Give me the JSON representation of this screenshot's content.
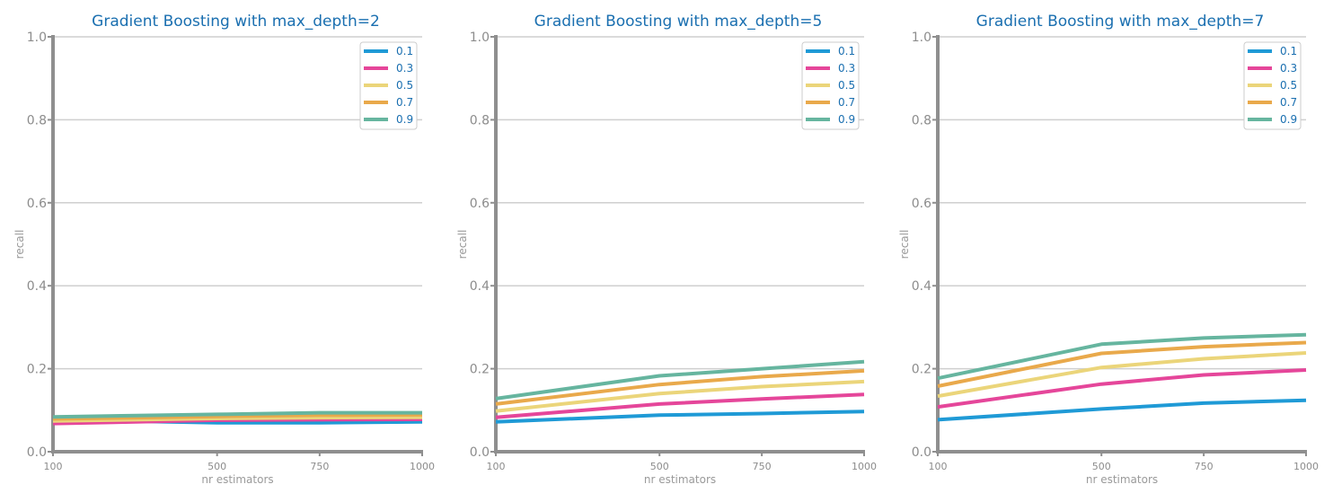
{
  "chart_data": [
    {
      "type": "line",
      "title": "Gradient Boosting with max_depth=2",
      "xlabel": "nr estimators",
      "ylabel": "recall",
      "x": [
        100,
        500,
        750,
        1000
      ],
      "x_tick_labels": [
        "100",
        "500",
        "750",
        "1000"
      ],
      "y_tick_labels": [
        "0.0",
        "0.2",
        "0.4",
        "0.6",
        "0.8",
        "1.0"
      ],
      "ylim": [
        0,
        1
      ],
      "grid": "horizontal",
      "legend_position": "top-right",
      "series": [
        {
          "name": "0.1",
          "values": [
            0.077,
            0.07,
            0.07,
            0.072
          ]
        },
        {
          "name": "0.3",
          "values": [
            0.068,
            0.076,
            0.077,
            0.078
          ]
        },
        {
          "name": "0.5",
          "values": [
            0.074,
            0.08,
            0.082,
            0.083
          ]
        },
        {
          "name": "0.7",
          "values": [
            0.079,
            0.085,
            0.088,
            0.089
          ]
        },
        {
          "name": "0.9",
          "values": [
            0.084,
            0.09,
            0.094,
            0.094
          ]
        }
      ]
    },
    {
      "type": "line",
      "title": "Gradient Boosting with max_depth=5",
      "xlabel": "nr estimators",
      "ylabel": "recall",
      "x": [
        100,
        500,
        750,
        1000
      ],
      "x_tick_labels": [
        "100",
        "500",
        "750",
        "1000"
      ],
      "y_tick_labels": [
        "0.0",
        "0.2",
        "0.4",
        "0.6",
        "0.8",
        "1.0"
      ],
      "ylim": [
        0,
        1
      ],
      "grid": "horizontal",
      "legend_position": "top-right",
      "series": [
        {
          "name": "0.1",
          "values": [
            0.072,
            0.088,
            0.092,
            0.097
          ]
        },
        {
          "name": "0.3",
          "values": [
            0.083,
            0.115,
            0.127,
            0.138
          ]
        },
        {
          "name": "0.5",
          "values": [
            0.098,
            0.14,
            0.157,
            0.169
          ]
        },
        {
          "name": "0.7",
          "values": [
            0.115,
            0.162,
            0.181,
            0.195
          ]
        },
        {
          "name": "0.9",
          "values": [
            0.128,
            0.183,
            0.2,
            0.217
          ]
        }
      ]
    },
    {
      "type": "line",
      "title": "Gradient Boosting with max_depth=7",
      "xlabel": "nr estimators",
      "ylabel": "recall",
      "x": [
        100,
        500,
        750,
        1000
      ],
      "x_tick_labels": [
        "100",
        "500",
        "750",
        "1000"
      ],
      "y_tick_labels": [
        "0.0",
        "0.2",
        "0.4",
        "0.6",
        "0.8",
        "1.0"
      ],
      "ylim": [
        0,
        1
      ],
      "grid": "horizontal",
      "legend_position": "top-right",
      "series": [
        {
          "name": "0.1",
          "values": [
            0.077,
            0.103,
            0.117,
            0.124
          ]
        },
        {
          "name": "0.3",
          "values": [
            0.108,
            0.163,
            0.185,
            0.197
          ]
        },
        {
          "name": "0.5",
          "values": [
            0.134,
            0.203,
            0.224,
            0.238
          ]
        },
        {
          "name": "0.7",
          "values": [
            0.158,
            0.237,
            0.253,
            0.263
          ]
        },
        {
          "name": "0.9",
          "values": [
            0.177,
            0.259,
            0.274,
            0.282
          ]
        }
      ]
    }
  ],
  "series_colors": [
    "#1f9ad6",
    "#e5469a",
    "#ebd57a",
    "#e9a94b",
    "#66b59f"
  ],
  "axis_color": "#8f8f8f",
  "grid_color": "#cfcfcf",
  "title_color": "#1a6fb0"
}
